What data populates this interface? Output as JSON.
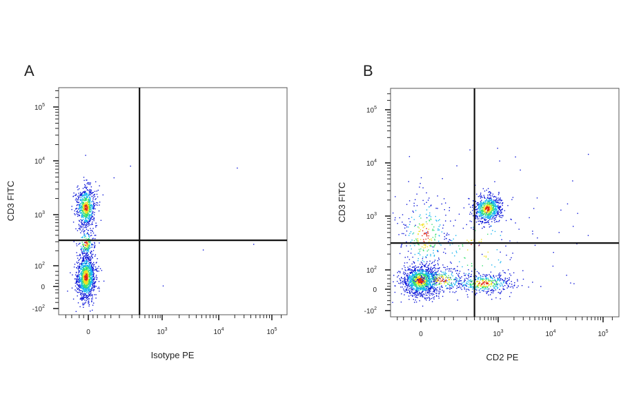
{
  "chart_data": [
    {
      "type": "scatter",
      "panel_label": "A",
      "xlabel": "Isotype PE",
      "ylabel": "CD3 FITC",
      "axis_scale": "biexponential",
      "xticks": [
        {
          "value": 0,
          "label": "0"
        },
        {
          "value": 1000,
          "label": "10",
          "exp": "3"
        },
        {
          "value": 10000,
          "label": "10",
          "exp": "4"
        },
        {
          "value": 100000,
          "label": "10",
          "exp": "5"
        }
      ],
      "yticks": [
        {
          "value": -100,
          "label": "-10",
          "exp": "2"
        },
        {
          "value": 0,
          "label": "0"
        },
        {
          "value": 100,
          "label": "10",
          "exp": "2"
        },
        {
          "value": 1000,
          "label": "10",
          "exp": "3"
        },
        {
          "value": 10000,
          "label": "10",
          "exp": "4"
        },
        {
          "value": 100000,
          "label": "10",
          "exp": "5"
        }
      ],
      "quadrant_gate": {
        "x": 300,
        "y": 320
      },
      "populations": [
        {
          "x": 0,
          "y": 1300,
          "density": "high"
        },
        {
          "x": 0,
          "y": 30,
          "density": "very high"
        }
      ],
      "grid": false,
      "density_colors": [
        "#0a14d8",
        "#14b4f0",
        "#34e070",
        "#f0e020",
        "#e02814"
      ]
    },
    {
      "type": "scatter",
      "panel_label": "B",
      "xlabel": "CD2 PE",
      "ylabel": "CD3 FITC",
      "axis_scale": "biexponential",
      "xticks": [
        {
          "value": 0,
          "label": "0"
        },
        {
          "value": 1000,
          "label": "10",
          "exp": "3"
        },
        {
          "value": 10000,
          "label": "10",
          "exp": "4"
        },
        {
          "value": 100000,
          "label": "10",
          "exp": "5"
        }
      ],
      "yticks": [
        {
          "value": -100,
          "label": "-10",
          "exp": "2"
        },
        {
          "value": 0,
          "label": "0"
        },
        {
          "value": 100,
          "label": "10",
          "exp": "2"
        },
        {
          "value": 1000,
          "label": "10",
          "exp": "3"
        },
        {
          "value": 10000,
          "label": "10",
          "exp": "4"
        },
        {
          "value": 100000,
          "label": "10",
          "exp": "5"
        }
      ],
      "quadrant_gate": {
        "x": 300,
        "y": 320
      },
      "populations": [
        {
          "x": 700,
          "y": 1300,
          "density": "high"
        },
        {
          "x": 0,
          "y": 30,
          "density": "very high"
        },
        {
          "x": 700,
          "y": 20,
          "density": "medium"
        }
      ],
      "grid": false,
      "density_colors": [
        "#0a14d8",
        "#14b4f0",
        "#34e070",
        "#f0e020",
        "#e02814"
      ]
    }
  ]
}
